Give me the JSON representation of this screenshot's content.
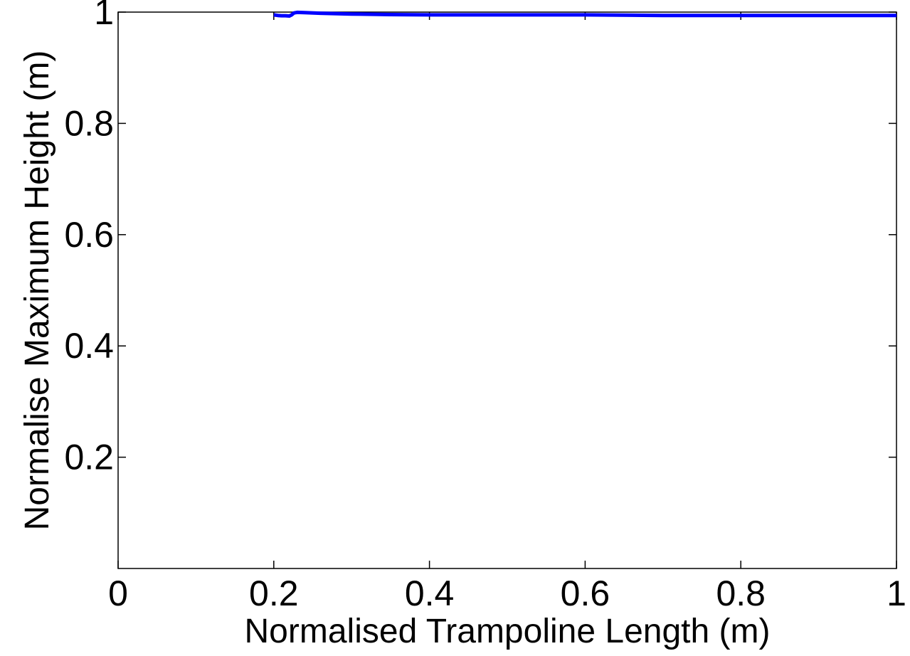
{
  "chart_data": {
    "type": "line",
    "xlabel": "Normalised Trampoline Length (m)",
    "ylabel": "Normalise Maximum Height (m)",
    "xlim": [
      0,
      1
    ],
    "ylim": [
      0,
      1
    ],
    "x_ticks": [
      0,
      0.2,
      0.4,
      0.6,
      0.8,
      1
    ],
    "x_tick_labels": [
      "0",
      "0.2",
      "0.4",
      "0.6",
      "0.8",
      "1"
    ],
    "y_ticks": [
      0.2,
      0.4,
      0.6,
      0.8,
      1
    ],
    "y_tick_labels": [
      "0.2",
      "0.4",
      "0.6",
      "0.8",
      "1"
    ],
    "grid": false,
    "series": [
      {
        "color": "#0000ff",
        "x": [
          0.2,
          0.205,
          0.21,
          0.215,
          0.22,
          0.223,
          0.226,
          0.23,
          0.24,
          0.26,
          0.3,
          0.35,
          0.4,
          0.5,
          0.6,
          0.7,
          0.8,
          0.9,
          1.0
        ],
        "y": [
          0.995,
          0.994,
          0.9935,
          0.9935,
          0.993,
          0.995,
          0.9985,
          0.9995,
          0.999,
          0.998,
          0.9965,
          0.9955,
          0.995,
          0.995,
          0.995,
          0.994,
          0.994,
          0.994,
          0.994
        ]
      }
    ]
  }
}
